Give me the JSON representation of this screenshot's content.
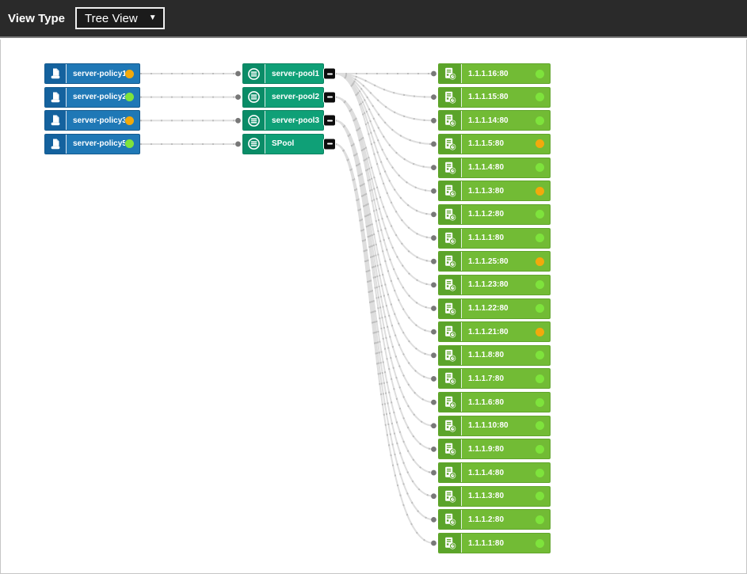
{
  "header": {
    "view_type_label": "View Type",
    "view_type_value": "Tree View",
    "dropdown_caret": "▼"
  },
  "colors": {
    "topbar_bg": "#2a2a2a",
    "policy_bg": "#1f78b6",
    "policy_icon_bg": "#14629e",
    "pool_bg": "#0fa077",
    "pool_icon_bg": "#0a8c67",
    "server_bg": "#72bb35",
    "server_icon_bg": "#5ba42a",
    "status_up": "#7ee33c",
    "status_warning": "#f2a90c",
    "edge": "#dedede",
    "edge_tick": "#bdbdbd",
    "endpoint_dot": "#787878"
  },
  "topology": {
    "policies": [
      {
        "label": "server-policy1",
        "status": "warning"
      },
      {
        "label": "server-policy2",
        "status": "up"
      },
      {
        "label": "server-policy3",
        "status": "warning"
      },
      {
        "label": "server-policy5",
        "status": "up"
      }
    ],
    "pools": [
      {
        "label": "server-pool1",
        "collapse_label": "−",
        "members": [
          0,
          1,
          2,
          3,
          4,
          5,
          6,
          7
        ]
      },
      {
        "label": "server-pool2",
        "collapse_label": "−",
        "members": [
          8,
          9,
          10,
          11
        ]
      },
      {
        "label": "server-pool3",
        "collapse_label": "−",
        "members": [
          12,
          13,
          14,
          15,
          16
        ]
      },
      {
        "label": "SPool",
        "collapse_label": "−",
        "members": [
          17,
          18,
          19,
          20
        ]
      }
    ],
    "policy_to_pool": [
      [
        0,
        0
      ],
      [
        1,
        1
      ],
      [
        2,
        2
      ],
      [
        3,
        3
      ]
    ],
    "servers": [
      {
        "label": "1.1.1.16:80",
        "status": "up"
      },
      {
        "label": "1.1.1.15:80",
        "status": "up"
      },
      {
        "label": "1.1.1.14:80",
        "status": "up"
      },
      {
        "label": "1.1.1.5:80",
        "status": "warning"
      },
      {
        "label": "1.1.1.4:80",
        "status": "up"
      },
      {
        "label": "1.1.1.3:80",
        "status": "warning"
      },
      {
        "label": "1.1.1.2:80",
        "status": "up"
      },
      {
        "label": "1.1.1.1:80",
        "status": "up"
      },
      {
        "label": "1.1.1.25:80",
        "status": "warning"
      },
      {
        "label": "1.1.1.23:80",
        "status": "up"
      },
      {
        "label": "1.1.1.22:80",
        "status": "up"
      },
      {
        "label": "1.1.1.21:80",
        "status": "warning"
      },
      {
        "label": "1.1.1.8:80",
        "status": "up"
      },
      {
        "label": "1.1.1.7:80",
        "status": "up"
      },
      {
        "label": "1.1.1.6:80",
        "status": "up"
      },
      {
        "label": "1.1.1.10:80",
        "status": "up"
      },
      {
        "label": "1.1.1.9:80",
        "status": "up"
      },
      {
        "label": "1.1.1.4:80",
        "status": "up"
      },
      {
        "label": "1.1.1.3:80",
        "status": "up"
      },
      {
        "label": "1.1.1.2:80",
        "status": "up"
      },
      {
        "label": "1.1.1.1:80",
        "status": "up"
      }
    ]
  }
}
